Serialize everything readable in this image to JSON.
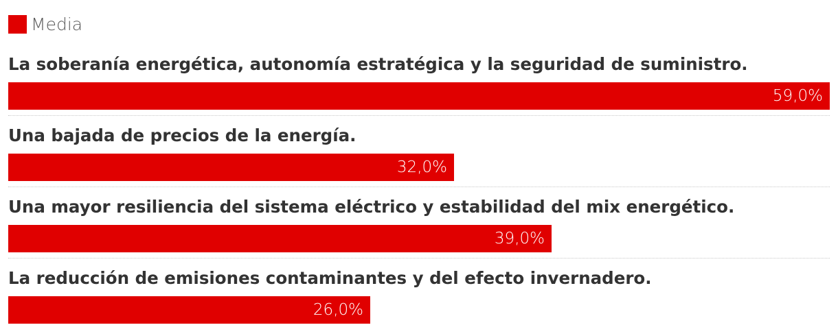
{
  "chart_data": {
    "type": "bar",
    "orientation": "horizontal",
    "series": [
      {
        "name": "Media",
        "color": "#e00000",
        "values": [
          59.0,
          32.0,
          39.0,
          26.0
        ],
        "labels": [
          "59,0%",
          "32,0%",
          "39,0%",
          "26,0%"
        ]
      }
    ],
    "categories": [
      "La soberanía energética, autonomía estratégica y la seguridad de suministro.",
      "Una bajada de precios de la energía.",
      "Una mayor resiliencia del sistema eléctrico y estabilidad del mix energético.",
      "La reducción de emisiones contaminantes y del efecto invernadero."
    ],
    "xlim": [
      0,
      59
    ],
    "legend": "top-left",
    "grid": false
  }
}
